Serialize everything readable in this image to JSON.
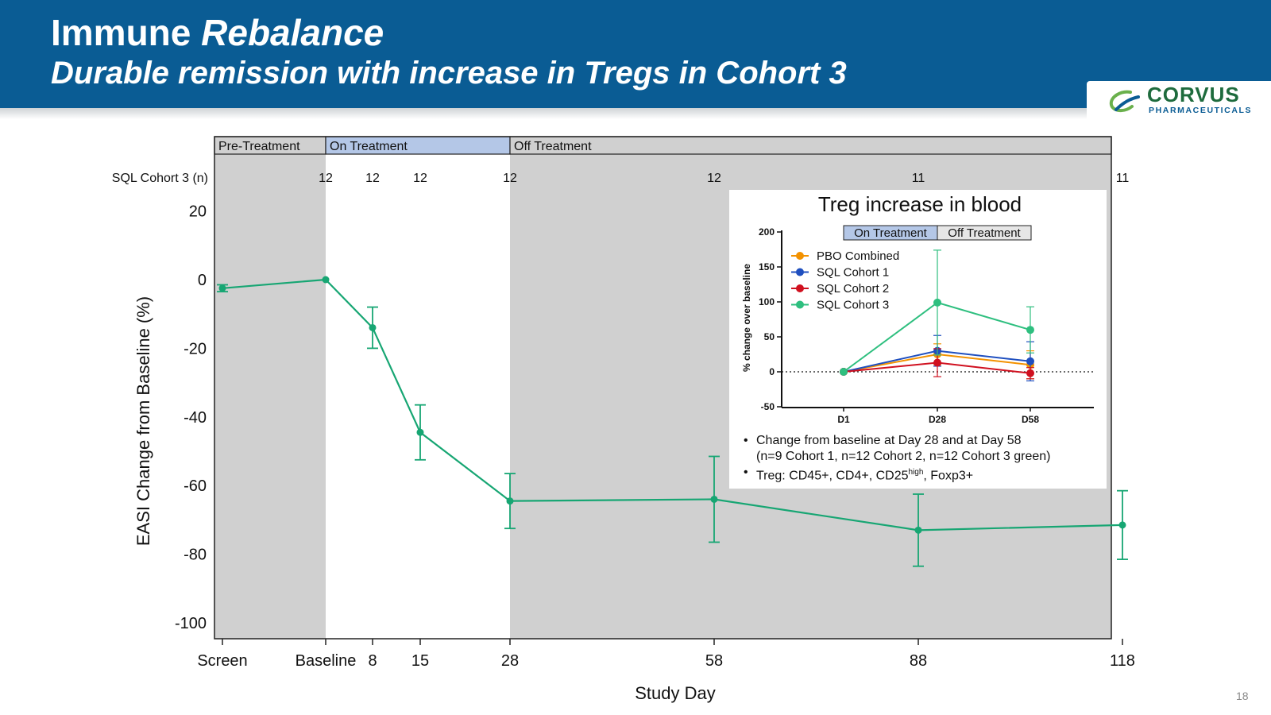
{
  "slide": {
    "title_plain": "Immune ",
    "title_emph": "Rebalance",
    "subtitle": "Durable remission with increase in Tregs in Cohort 3",
    "page_number": "18"
  },
  "logo": {
    "word": "CORVUS",
    "sub": "PHARMACEUTICALS",
    "icon": "corvus-swirl-icon"
  },
  "colors": {
    "header_bg": "#0a5c94",
    "series_green": "#17a673",
    "shade_grey": "#d0d0d0",
    "on_treatment_blue": "#b4c7e7",
    "pbo_orange": "#f39200",
    "cohort1_blue": "#1f4fbf",
    "cohort2_red": "#d0101f",
    "cohort3_green": "#2ebf7f"
  },
  "chart_data": [
    {
      "type": "line",
      "id": "easi",
      "ylabel": "EASI Change from Baseline (%)",
      "xlabel": "Study Day",
      "ylim": [
        -100,
        20
      ],
      "yticks": [
        20,
        0,
        -20,
        -40,
        -60,
        -80,
        -100
      ],
      "x_tick_labels": [
        "Screen",
        "Baseline",
        "8",
        "15",
        "28",
        "58",
        "88",
        "118"
      ],
      "phase_bands": [
        "Pre-Treatment",
        "On Treatment",
        "Off Treatment"
      ],
      "n_row_label": "SQL Cohort 3 (n)",
      "n_values": [
        "12",
        "12",
        "12",
        "12",
        "12",
        "11",
        "11"
      ],
      "series": [
        {
          "points": [
            {
              "x": "Screen",
              "y": -2.5,
              "err": 1
            },
            {
              "x": "Baseline",
              "y": 0,
              "err": 0
            },
            {
              "x": "8",
              "y": -14,
              "err": 6
            },
            {
              "x": "15",
              "y": -44.5,
              "err": 8
            },
            {
              "x": "28",
              "y": -64.5,
              "err": 8
            },
            {
              "x": "58",
              "y": -64,
              "err": 12.5
            },
            {
              "x": "88",
              "y": -73,
              "err": 10.5
            },
            {
              "x": "118",
              "y": -71.5,
              "err": 10
            }
          ]
        }
      ]
    },
    {
      "type": "line",
      "id": "treg",
      "title": "Treg increase in blood",
      "ylabel": "% change over baseline",
      "ylim": [
        -50,
        200
      ],
      "yticks": [
        200,
        150,
        100,
        50,
        0,
        -50
      ],
      "categories": [
        "D1",
        "D28",
        "D58"
      ],
      "phase_labels": [
        "On Treatment",
        "Off Treatment"
      ],
      "series": [
        {
          "name": "PBO Combined",
          "color": "#f39200",
          "values": [
            0,
            25,
            10
          ],
          "err": [
            0,
            15,
            20
          ]
        },
        {
          "name": "SQL Cohort 1",
          "color": "#1f4fbf",
          "values": [
            0,
            30,
            15
          ],
          "err": [
            0,
            22,
            28
          ]
        },
        {
          "name": "SQL Cohort 2",
          "color": "#d0101f",
          "values": [
            0,
            13,
            -2
          ],
          "err": [
            0,
            20,
            8
          ]
        },
        {
          "name": "SQL Cohort 3",
          "color": "#2ebf7f",
          "values": [
            0,
            99,
            60
          ],
          "err": [
            0,
            75,
            33
          ]
        }
      ],
      "notes": {
        "line1": "Change from baseline at Day 28 and at Day 58",
        "line2": "(n=9 Cohort 1, n=12 Cohort 2, n=12 Cohort 3 green)",
        "line3_prefix": "Treg: CD45+, CD4+, CD25",
        "line3_sup": "high",
        "line3_suffix": ", Foxp3+"
      }
    }
  ]
}
